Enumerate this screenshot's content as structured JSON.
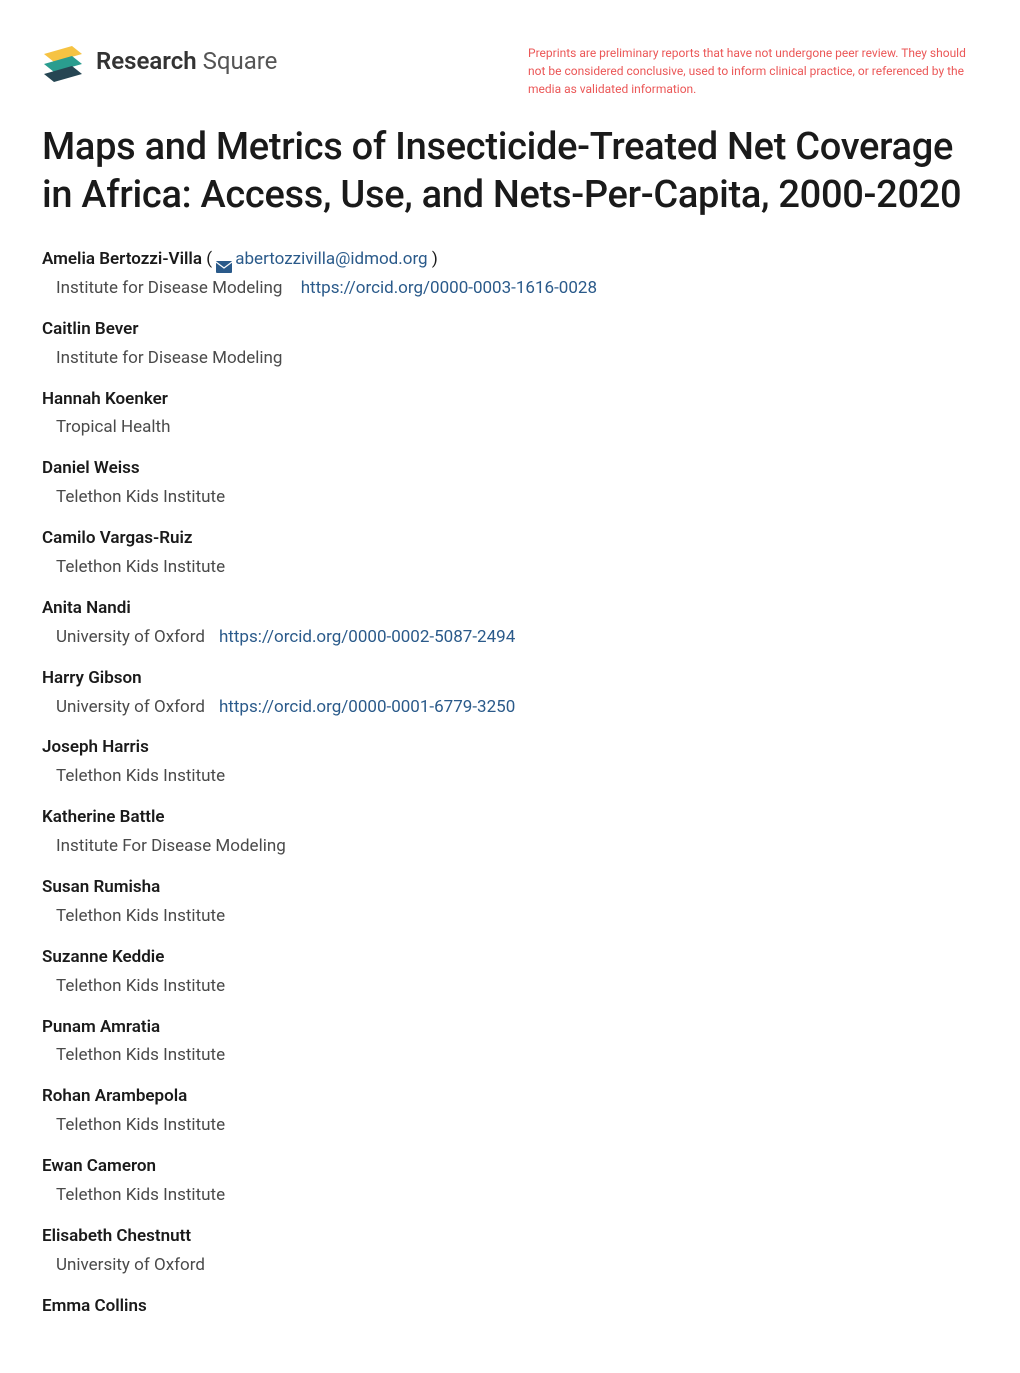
{
  "logo": {
    "text_bold": "Research",
    "text_light": " Square"
  },
  "disclaimer": "Preprints are preliminary reports that have not undergone peer review. They should not be considered conclusive, used to inform clinical practice, or referenced by the media as validated information.",
  "title": "Maps and Metrics of Insecticide-Treated Net Coverage in Africa: Access, Use, and Nets-Per-Capita, 2000-2020",
  "corresponding_author": {
    "name": "Amelia Bertozzi-Villa",
    "email": "abertozzivilla@idmod.org",
    "affiliation": "Institute for Disease Modeling",
    "orcid": "https://orcid.org/0000-0003-1616-0028"
  },
  "authors": [
    {
      "name": "Caitlin Bever",
      "affiliation": "Institute for Disease Modeling",
      "orcid": null
    },
    {
      "name": "Hannah Koenker",
      "affiliation": "Tropical Health",
      "orcid": null
    },
    {
      "name": "Daniel Weiss",
      "affiliation": "Telethon Kids Institute",
      "orcid": null
    },
    {
      "name": "Camilo Vargas-Ruiz",
      "affiliation": "Telethon Kids Institute",
      "orcid": null
    },
    {
      "name": "Anita Nandi",
      "affiliation": "University of Oxford",
      "orcid": "https://orcid.org/0000-0002-5087-2494"
    },
    {
      "name": "Harry Gibson",
      "affiliation": "University of Oxford",
      "orcid": "https://orcid.org/0000-0001-6779-3250"
    },
    {
      "name": "Joseph Harris",
      "affiliation": "Telethon Kids Institute",
      "orcid": null
    },
    {
      "name": "Katherine Battle",
      "affiliation": "Institute For Disease Modeling",
      "orcid": null
    },
    {
      "name": "Susan Rumisha",
      "affiliation": "Telethon Kids Institute",
      "orcid": null
    },
    {
      "name": "Suzanne Keddie",
      "affiliation": "Telethon Kids Institute",
      "orcid": null
    },
    {
      "name": "Punam Amratia",
      "affiliation": "Telethon Kids Institute",
      "orcid": null
    },
    {
      "name": "Rohan Arambepola",
      "affiliation": "Telethon Kids Institute",
      "orcid": null
    },
    {
      "name": "Ewan Cameron",
      "affiliation": "Telethon Kids Institute",
      "orcid": null
    },
    {
      "name": "Elisabeth Chestnutt",
      "affiliation": "University of Oxford",
      "orcid": null
    },
    {
      "name": "Emma Collins",
      "affiliation": null,
      "orcid": null
    }
  ],
  "colors": {
    "title": "#1a1a1a",
    "author_name": "#1a1a1a",
    "affiliation": "#4a4a4a",
    "link": "#2a5a8a",
    "disclaimer": "#eb5757",
    "logo_yellow": "#f6c343",
    "logo_teal": "#2a9d8f",
    "logo_dark": "#264653"
  }
}
